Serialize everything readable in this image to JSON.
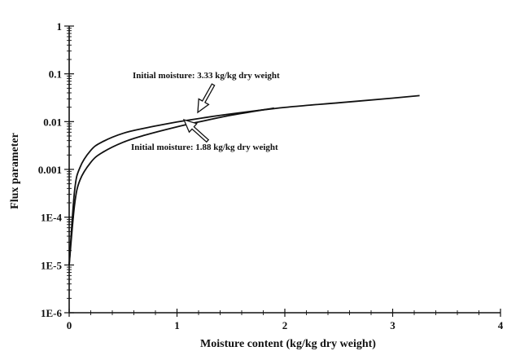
{
  "chart_data": {
    "type": "line",
    "title": "",
    "xlabel": "Moisture content (kg/kg dry weight)",
    "ylabel": "Flux parameter",
    "xlim": [
      0,
      4
    ],
    "ylim": [
      1e-06,
      1
    ],
    "yscale": "log",
    "grid": false,
    "x_ticks": [
      "0",
      "1",
      "2",
      "3",
      "4"
    ],
    "y_ticks": [
      "1E-6",
      "1E-5",
      "1E-4",
      "0.001",
      "0.01",
      "0.1",
      "1"
    ],
    "series": [
      {
        "key": "initial_3_33",
        "x": [
          0.0,
          0.05,
          0.1,
          0.2,
          0.3,
          0.5,
          0.7,
          1.0,
          1.2,
          1.5,
          2.0,
          2.5,
          3.0,
          3.25
        ],
        "y": [
          1e-05,
          0.00035,
          0.0011,
          0.0025,
          0.0037,
          0.0057,
          0.0073,
          0.0098,
          0.0116,
          0.0145,
          0.0198,
          0.0248,
          0.031,
          0.035
        ]
      },
      {
        "key": "initial_1_88",
        "x": [
          0.0,
          0.05,
          0.1,
          0.2,
          0.3,
          0.5,
          0.7,
          1.0,
          1.2,
          1.5,
          1.9
        ],
        "y": [
          1e-05,
          0.00018,
          0.0006,
          0.0014,
          0.0022,
          0.0037,
          0.0052,
          0.0078,
          0.0098,
          0.0136,
          0.0192
        ]
      }
    ],
    "annotations": [
      {
        "text": "Initial moisture:  3.33 kg/kg dry weight"
      },
      {
        "text": "Initial moisture:  1.88 kg/kg dry weight"
      }
    ]
  }
}
